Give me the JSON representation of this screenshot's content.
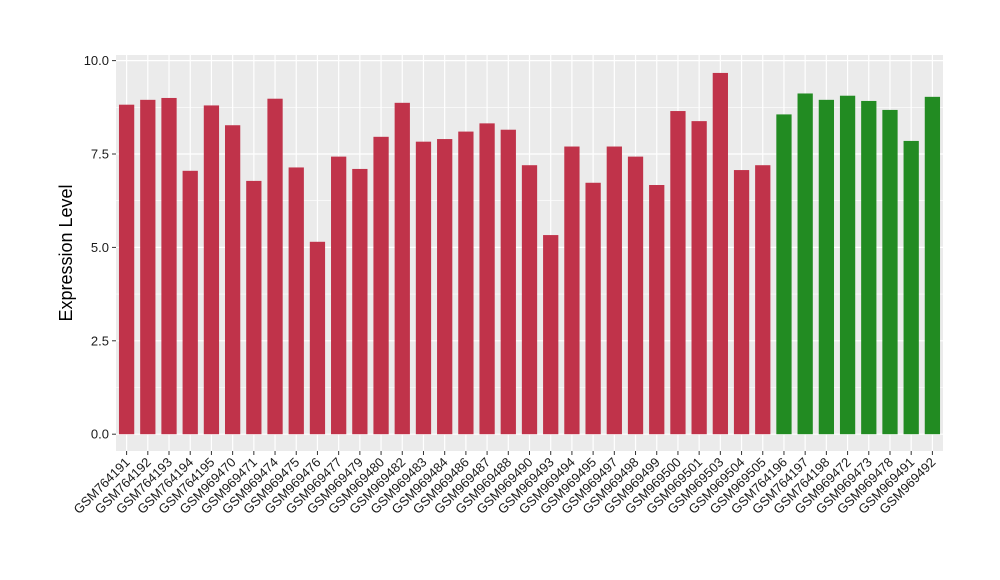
{
  "chart_data": {
    "type": "bar",
    "title": "",
    "xlabel": "",
    "ylabel": "Expression Level",
    "ylim": [
      -0.45,
      10.15
    ],
    "yticks": [
      0.0,
      2.5,
      5.0,
      7.5,
      10.0
    ],
    "ytick_labels": [
      "0.0",
      "2.5",
      "5.0",
      "7.5",
      "10.0"
    ],
    "grid": true,
    "legend": "none",
    "colors": {
      "group_a": "#C0334A",
      "group_b": "#228B22",
      "panel": "#EBEBEB",
      "grid": "#FFFFFF"
    },
    "categories": [
      "GSM764191",
      "GSM764192",
      "GSM764193",
      "GSM764194",
      "GSM764195",
      "GSM969470",
      "GSM969471",
      "GSM969474",
      "GSM969475",
      "GSM969476",
      "GSM969477",
      "GSM969479",
      "GSM969480",
      "GSM969482",
      "GSM969483",
      "GSM969484",
      "GSM969486",
      "GSM969487",
      "GSM969488",
      "GSM969490",
      "GSM969493",
      "GSM969494",
      "GSM969495",
      "GSM969497",
      "GSM969498",
      "GSM969499",
      "GSM969500",
      "GSM969501",
      "GSM969503",
      "GSM969504",
      "GSM969505",
      "GSM764196",
      "GSM764197",
      "GSM764198",
      "GSM969472",
      "GSM969473",
      "GSM969478",
      "GSM969491",
      "GSM969492"
    ],
    "values": [
      8.82,
      8.95,
      9.0,
      7.05,
      8.8,
      8.27,
      6.78,
      8.98,
      7.14,
      5.15,
      7.43,
      7.1,
      7.96,
      8.87,
      7.83,
      7.9,
      8.1,
      8.32,
      8.15,
      7.2,
      5.33,
      7.7,
      6.73,
      7.7,
      7.43,
      6.67,
      8.65,
      8.38,
      9.67,
      7.07,
      7.2,
      8.56,
      9.12,
      8.95,
      9.06,
      8.92,
      8.68,
      7.85,
      9.03
    ],
    "group": [
      "a",
      "a",
      "a",
      "a",
      "a",
      "a",
      "a",
      "a",
      "a",
      "a",
      "a",
      "a",
      "a",
      "a",
      "a",
      "a",
      "a",
      "a",
      "a",
      "a",
      "a",
      "a",
      "a",
      "a",
      "a",
      "a",
      "a",
      "a",
      "a",
      "a",
      "a",
      "b",
      "b",
      "b",
      "b",
      "b",
      "b",
      "b",
      "b"
    ]
  }
}
